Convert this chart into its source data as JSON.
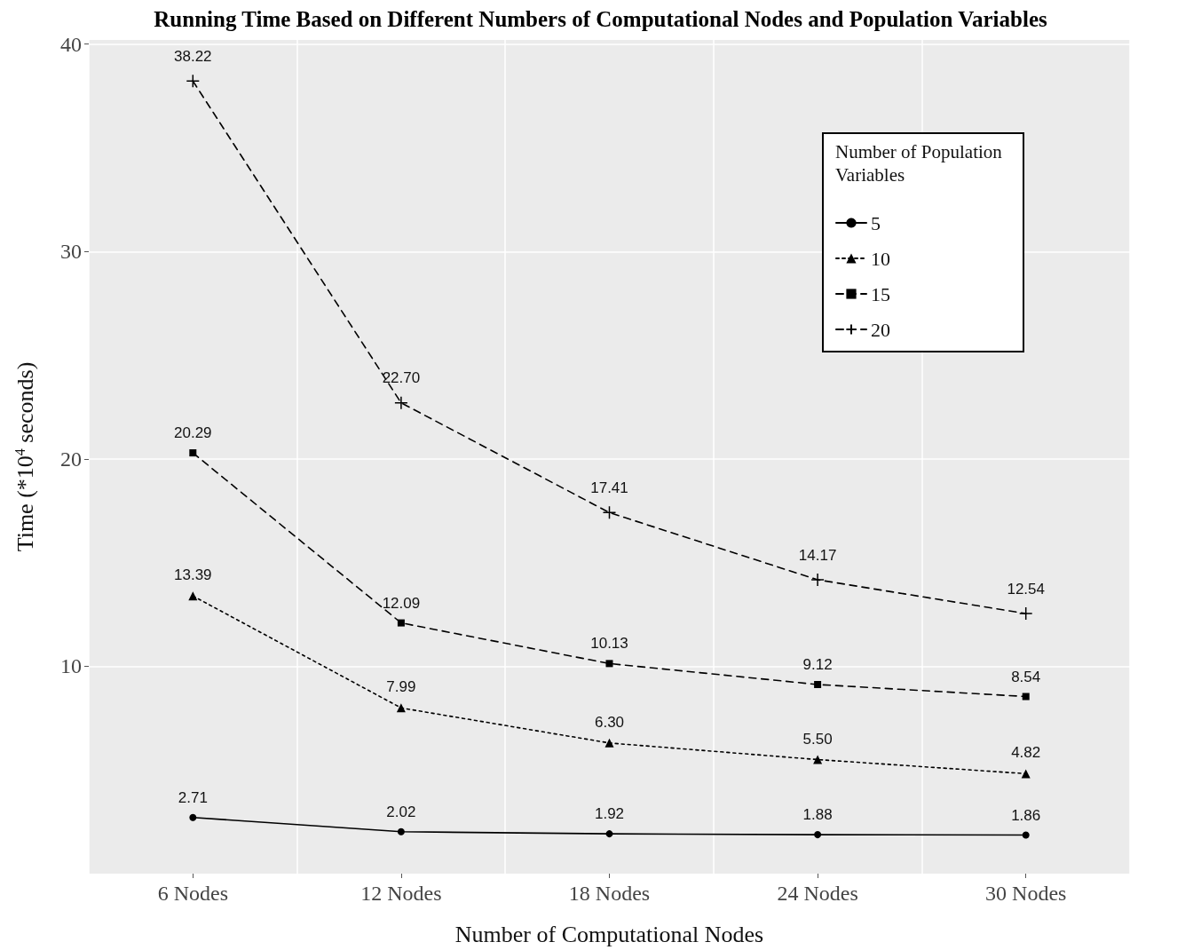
{
  "chart_data": {
    "type": "line",
    "title": "Running Time Based on Different Numbers of Computational Nodes and Population Variables",
    "xlabel": "Number of Computational Nodes",
    "ylabel": "Time (*10$^{4}$ seconds)",
    "legend_title": "Number of Population Variables",
    "categories": [
      "6 Nodes",
      "12 Nodes",
      "18 Nodes",
      "24 Nodes",
      "30 Nodes"
    ],
    "series": [
      {
        "name": "5",
        "color": "#000000",
        "marker": "circle",
        "line_style": "solid",
        "values": [
          2.71,
          2.02,
          1.92,
          1.88,
          1.86
        ],
        "value_labels": [
          "2.71",
          "2.02",
          "1.92",
          "1.88",
          "1.86"
        ]
      },
      {
        "name": "10",
        "color": "#000000",
        "marker": "triangle",
        "line_style": "dotted",
        "values": [
          13.39,
          7.99,
          6.3,
          5.5,
          4.82
        ],
        "value_labels": [
          "13.39",
          "7.99",
          "6.30",
          "5.50",
          "4.82"
        ]
      },
      {
        "name": "15",
        "color": "#000000",
        "marker": "square",
        "line_style": "dashed",
        "values": [
          20.29,
          12.09,
          10.13,
          9.12,
          8.54
        ],
        "value_labels": [
          "20.29",
          "12.09",
          "10.13",
          "9.12",
          "8.54"
        ]
      },
      {
        "name": "20",
        "color": "#000000",
        "marker": "cross",
        "line_style": "dashed",
        "values": [
          38.22,
          22.7,
          17.41,
          14.17,
          12.54
        ],
        "value_labels": [
          "38.22",
          "22.70",
          "17.41",
          "14.17",
          "12.54"
        ]
      }
    ],
    "ylim": [
      0,
      40.2
    ],
    "yticks": [
      10,
      20,
      30,
      40
    ],
    "grid": true,
    "legend": "top right"
  }
}
